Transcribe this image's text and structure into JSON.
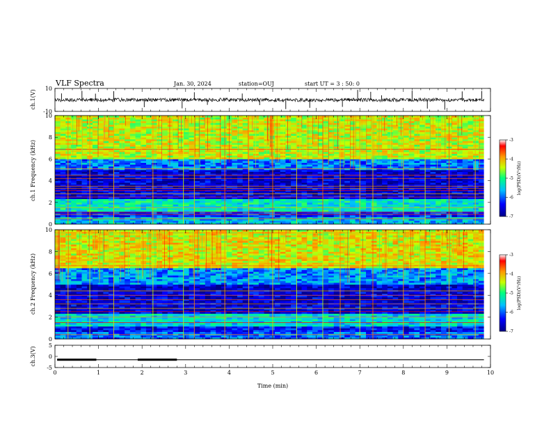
{
  "header": {
    "title": "VLF Spectra",
    "date": "Jan. 30, 2024",
    "station": "station=OUJ",
    "start_ut": "start UT =  3 : 50: 0"
  },
  "chart_data": [
    {
      "type": "line",
      "panel": "ch1_waveform",
      "ylabel": "ch.1(V)",
      "ylim": [
        -10,
        10
      ],
      "yticks": [
        "10",
        "-10"
      ],
      "xlim": [
        0,
        10
      ],
      "baseline": 0,
      "spikes_min": [
        0.15,
        0.62,
        0.93,
        1.35,
        2.05,
        2.92,
        3.2,
        3.5,
        4.3,
        4.7,
        5.3,
        5.85,
        6.6,
        6.95,
        7.25,
        7.5,
        8.2,
        8.55,
        8.95,
        9.35,
        9.8
      ]
    },
    {
      "type": "heatmap",
      "panel": "ch1_spectrogram",
      "ylabel": "ch.1 Frequency (kHz)",
      "ylim": [
        0,
        10
      ],
      "yticks": [
        "0",
        "2",
        "4",
        "6",
        "8",
        "10"
      ],
      "xlim": [
        0,
        9.85
      ],
      "zlabel": "log(PSD)(V²/Hz)",
      "zlim": [
        -7,
        -3
      ],
      "zticks": [
        "-3",
        "-4",
        "-5",
        "-6",
        "-7"
      ],
      "colormap": [
        "#000088",
        "#0000ff",
        "#00bfff",
        "#00ff80",
        "#c8ff00",
        "#ff9900",
        "#ff0000",
        "#ffffff"
      ],
      "band_levels": [
        {
          "f": [
            0,
            0.6
          ],
          "level": -5.6
        },
        {
          "f": [
            0.6,
            1.2
          ],
          "level": -6.2
        },
        {
          "f": [
            1.2,
            2.4
          ],
          "level": -5.3
        },
        {
          "f": [
            2.4,
            5.0
          ],
          "level": -6.6
        },
        {
          "f": [
            5.0,
            6.0
          ],
          "level": -5.9
        },
        {
          "f": [
            6.0,
            10.0
          ],
          "level": -4.4
        }
      ],
      "tone_lines_khz": [
        0.5,
        0.9,
        1.1,
        1.5,
        2.5,
        2.8,
        3.1,
        3.3,
        3.5,
        4.2,
        4.5,
        5.1,
        6.9
      ],
      "impulse_times_min": [
        0.3,
        0.8,
        1.35,
        2.25,
        2.95,
        3.2,
        3.9,
        4.45,
        5.0,
        5.55,
        6.15,
        6.55,
        7.0,
        7.3,
        8.0,
        8.5,
        9.05,
        9.65
      ]
    },
    {
      "type": "heatmap",
      "panel": "ch2_spectrogram",
      "ylabel": "ch.2 Frequency (kHz)",
      "ylim": [
        0,
        10
      ],
      "yticks": [
        "0",
        "2",
        "4",
        "6",
        "8",
        "10"
      ],
      "xlim": [
        0,
        9.85
      ],
      "zlabel": "log(PSD)(V²/Hz)",
      "zlim": [
        -7,
        -3
      ],
      "zticks": [
        "-3",
        "-4",
        "-5",
        "-6",
        "-7"
      ],
      "band_levels": [
        {
          "f": [
            0,
            0.6
          ],
          "level": -6.0
        },
        {
          "f": [
            0.6,
            1.2
          ],
          "level": -6.4
        },
        {
          "f": [
            1.2,
            2.4
          ],
          "level": -5.4
        },
        {
          "f": [
            2.4,
            5.0
          ],
          "level": -6.6
        },
        {
          "f": [
            5.0,
            6.5
          ],
          "level": -5.8
        },
        {
          "f": [
            6.5,
            10.0
          ],
          "level": -4.3
        }
      ],
      "tone_lines_khz": [
        0.4,
        1.5,
        2.0,
        2.5,
        2.8,
        3.2,
        3.6,
        4.0,
        4.4,
        6.7,
        9.7
      ],
      "impulse_times_min": [
        0.3,
        0.8,
        1.35,
        2.25,
        2.95,
        3.2,
        3.9,
        4.45,
        5.0,
        5.55,
        6.15,
        6.55,
        7.0,
        7.3,
        8.0,
        8.5,
        9.05,
        9.65
      ]
    },
    {
      "type": "line",
      "panel": "ch3_waveform",
      "ylabel": "ch.3(V)",
      "ylim": [
        -5,
        5
      ],
      "yticks": [
        "5",
        "0",
        "-5"
      ],
      "xlim": [
        0,
        10
      ],
      "level": -1.5,
      "thick_segments_min": [
        [
          0.05,
          0.95
        ],
        [
          1.9,
          2.8
        ]
      ],
      "xlabel": "Time (min)",
      "xticks": [
        "0",
        "1",
        "2",
        "3",
        "4",
        "5",
        "6",
        "7",
        "8",
        "9",
        "10"
      ]
    }
  ]
}
